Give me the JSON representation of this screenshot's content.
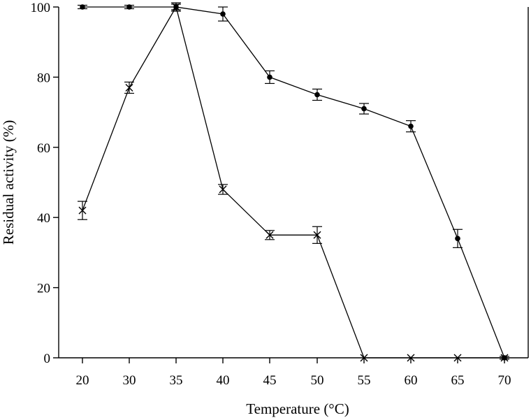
{
  "chart_data": {
    "type": "line",
    "xlabel": "Temperature (°C)",
    "ylabel": "Residual activity (%)",
    "categories": [
      "20",
      "30",
      "35",
      "40",
      "45",
      "50",
      "55",
      "60",
      "65",
      "70"
    ],
    "ylim": [
      0,
      100
    ],
    "yticks": [
      "0",
      "20",
      "40",
      "60",
      "80",
      "100"
    ],
    "grid": false,
    "series": [
      {
        "marker": "circle",
        "color": "#000000",
        "values": [
          100,
          100,
          100,
          98,
          80,
          75,
          71,
          66,
          34,
          0
        ],
        "errors": [
          0.5,
          0.5,
          0.8,
          2,
          1.8,
          1.6,
          1.5,
          1.6,
          2.6,
          0.4
        ]
      },
      {
        "marker": "cross",
        "color": "#000000",
        "values": [
          42,
          77,
          100,
          48,
          35,
          35,
          0,
          0,
          0,
          0
        ],
        "errors": [
          2.6,
          1.6,
          1.2,
          1.4,
          1.3,
          2.4,
          0,
          0,
          0,
          0
        ]
      }
    ]
  }
}
